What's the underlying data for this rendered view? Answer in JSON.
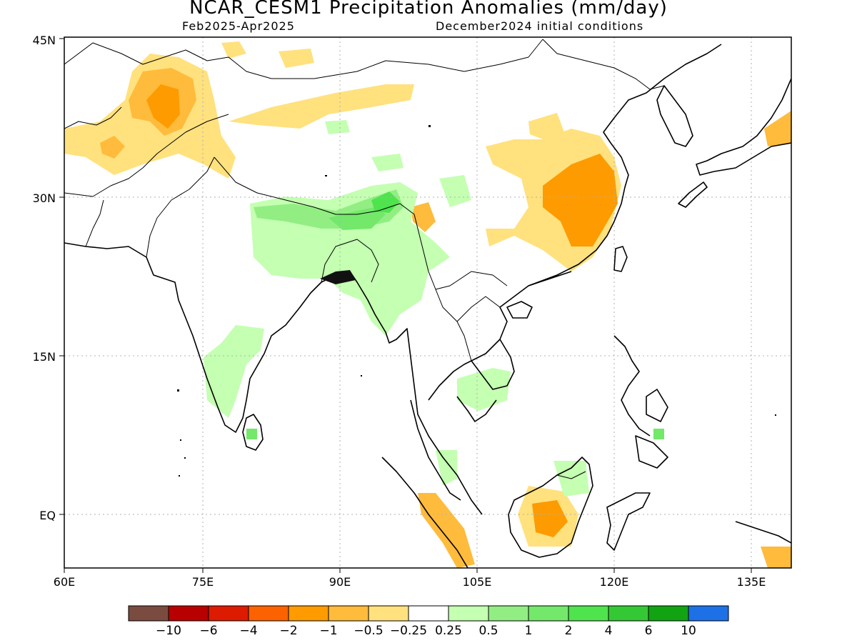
{
  "title": "NCAR_CESM1 Precipitation Anomalies (mm/day)",
  "subtitle_left": "Feb2025-Apr2025",
  "subtitle_right": "December2024 initial conditions",
  "axes": {
    "lon_ticks": [
      "60E",
      "75E",
      "90E",
      "105E",
      "120E",
      "135E"
    ],
    "lat_ticks": [
      "45N",
      "30N",
      "15N",
      "EQ"
    ],
    "grid": "dotted"
  },
  "colorbar": {
    "colors": [
      "#7a4b3f",
      "#b80000",
      "#dd1b00",
      "#fc6200",
      "#fd9b00",
      "#ffbb3b",
      "#ffe17e",
      "#ffffff",
      "#c4ffb2",
      "#92ee83",
      "#73e86a",
      "#4fe34e",
      "#34c934",
      "#12a312",
      "#1e70e6"
    ],
    "labels": [
      "-10",
      "-6",
      "-4",
      "-2",
      "-1",
      "-0.5",
      "-0.25",
      "0.25",
      "0.5",
      "1",
      "2",
      "4",
      "6",
      "10"
    ]
  },
  "anomaly_colors": {
    "light_yellow": "#ffe17e",
    "light_orange": "#ffbb3b",
    "orange": "#fd9b00",
    "pale_green": "#c4ffb2",
    "light_green": "#92ee83",
    "green": "#73e86a",
    "bright_green": "#4fe34e"
  }
}
